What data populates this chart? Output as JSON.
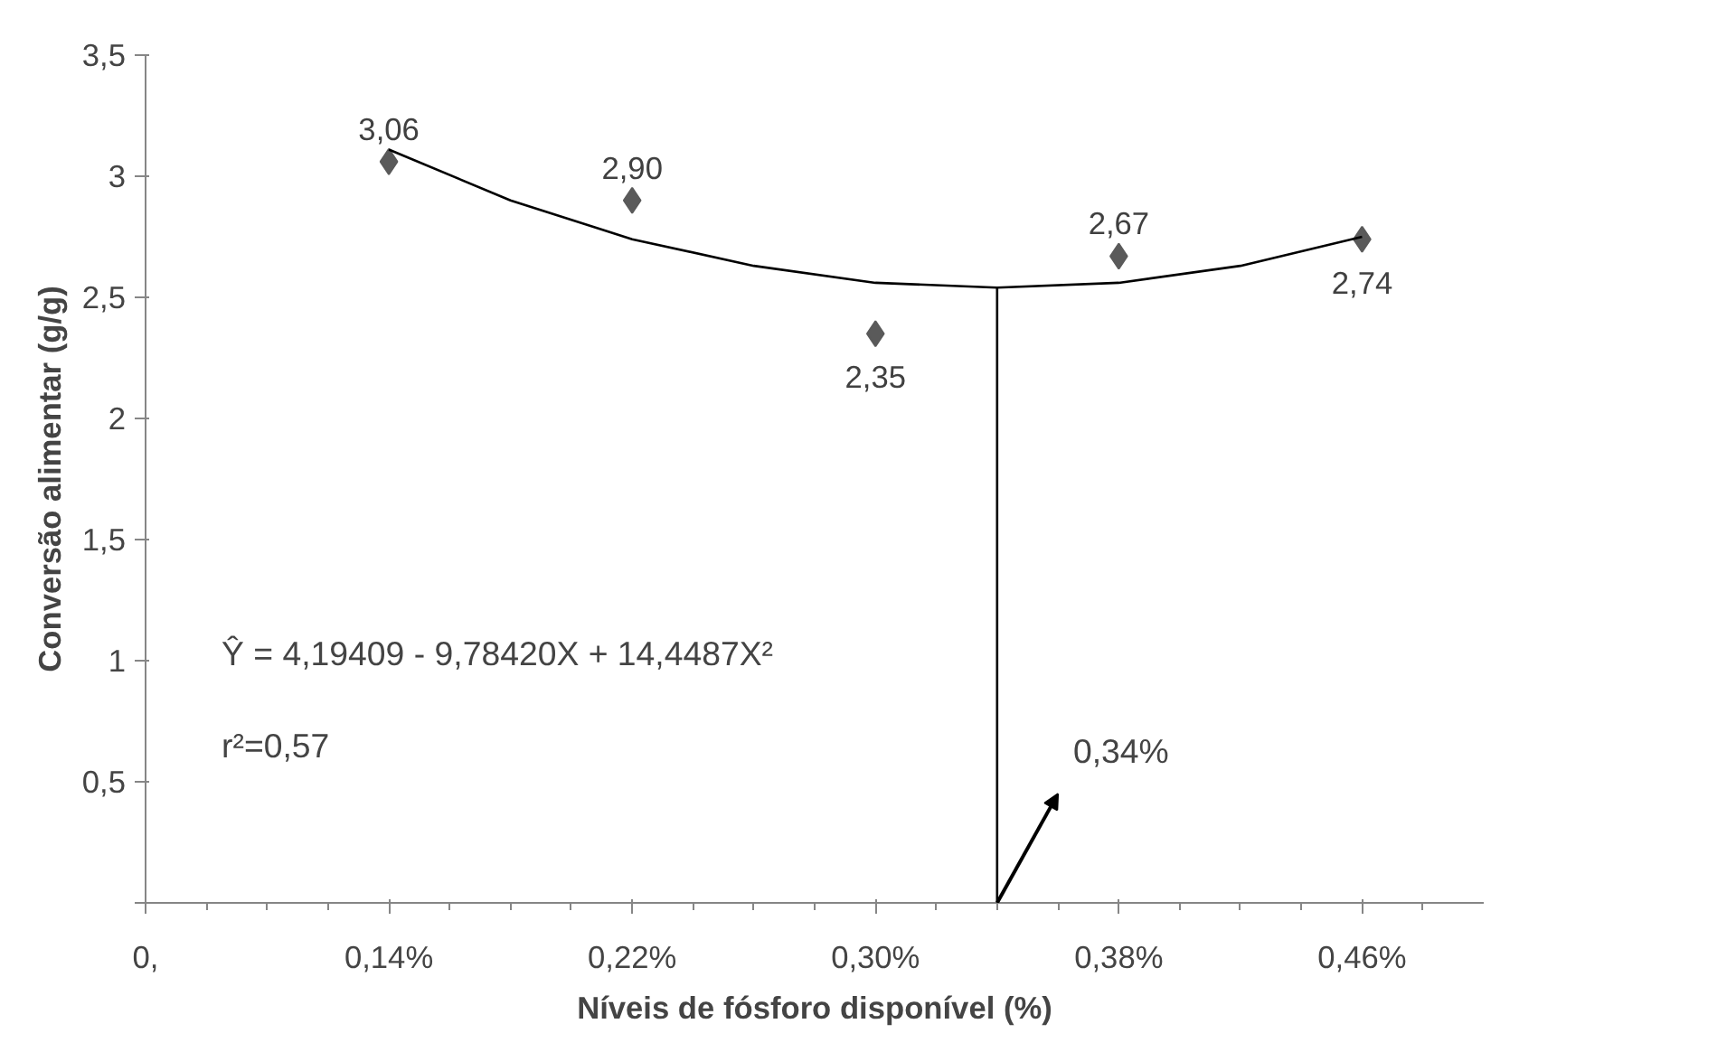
{
  "chart_data": {
    "type": "scatter",
    "xlabel": "Níveis de fósforo disponível (%)",
    "ylabel": "Conversão alimentar (g/g)",
    "x": [
      0.14,
      0.22,
      0.3,
      0.38,
      0.46
    ],
    "series": [
      {
        "color": "#5a5a5a",
        "marker": "diamond",
        "values": [
          3.06,
          2.9,
          2.35,
          2.67,
          2.74
        ],
        "value_labels": [
          "3,06",
          "2,90",
          "2,35",
          "2,67",
          "2,74"
        ]
      },
      {
        "type": "line",
        "color": "#000000",
        "x": [
          0.14,
          0.18,
          0.22,
          0.26,
          0.3,
          0.34,
          0.38,
          0.42,
          0.46
        ],
        "values": [
          3.11,
          2.9,
          2.74,
          2.63,
          2.56,
          2.54,
          2.56,
          2.63,
          2.75
        ]
      },
      {
        "type": "line",
        "color": "#000000",
        "x": [
          0.34,
          0.34
        ],
        "values": [
          0,
          2.54
        ]
      }
    ],
    "annotations": [
      {
        "text": "Ŷ = 4,19409 - 9,78420X + 14,4487X²"
      },
      {
        "text": "r²=0,57"
      },
      {
        "text": "0,34%",
        "x": 0.34,
        "y": 0
      }
    ],
    "xlim": [
      0.06,
      0.5
    ],
    "xticks": [
      {
        "value": 0.06,
        "label": "0,"
      },
      {
        "value": 0.14,
        "label": "0,14%"
      },
      {
        "value": 0.22,
        "label": "0,22%"
      },
      {
        "value": 0.3,
        "label": "0,30%"
      },
      {
        "value": 0.38,
        "label": "0,38%"
      },
      {
        "value": 0.46,
        "label": "0,46%"
      }
    ],
    "ylim": [
      0,
      3.5
    ],
    "yticks": [
      {
        "value": 0,
        "label": null
      },
      {
        "value": 0.5,
        "label": "0,5"
      },
      1,
      {
        "value": 1.5,
        "label": "1,5"
      },
      2,
      {
        "value": 2.5,
        "label": "2,5"
      },
      3,
      {
        "value": 3.5,
        "label": "3,5"
      }
    ],
    "grid": false,
    "legend": false
  }
}
